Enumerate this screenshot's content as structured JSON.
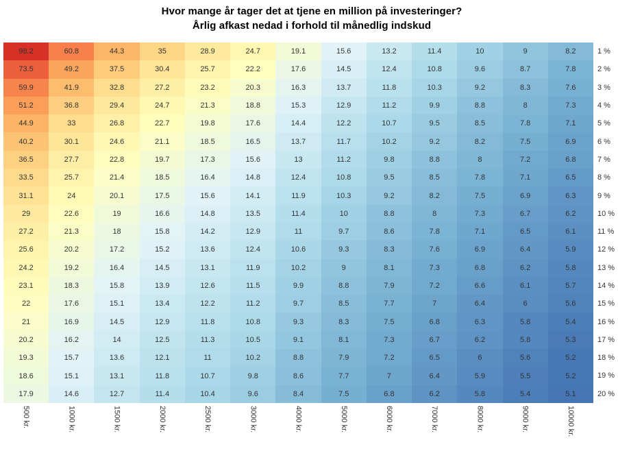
{
  "chart_data": {
    "type": "heatmap",
    "title": "Hvor mange år tager det at tjene en million på investeringer?",
    "subtitle": "Årlig afkast nedad i forhold til månedlig indskud",
    "columns": [
      "500 kr.",
      "1000 kr.",
      "1500 kr.",
      "2000 kr.",
      "2500 kr.",
      "3000 kr.",
      "4000 kr.",
      "5000 kr.",
      "6000 kr.",
      "7000 kr.",
      "8000 kr.",
      "9000 kr.",
      "10000 kr."
    ],
    "rows": [
      "1 %",
      "2 %",
      "3 %",
      "4 %",
      "5 %",
      "6 %",
      "7 %",
      "8 %",
      "9 %",
      "10 %",
      "11 %",
      "12 %",
      "13 %",
      "14 %",
      "15 %",
      "16 %",
      "17 %",
      "18 %",
      "19 %",
      "20 %"
    ],
    "values": [
      [
        98.2,
        60.8,
        44.3,
        35,
        28.9,
        24.7,
        19.1,
        15.6,
        13.2,
        11.4,
        10,
        9,
        8.2
      ],
      [
        73.5,
        49.2,
        37.5,
        30.4,
        25.7,
        22.2,
        17.6,
        14.5,
        12.4,
        10.8,
        9.6,
        8.7,
        7.8
      ],
      [
        59.9,
        41.9,
        32.8,
        27.2,
        23.2,
        20.3,
        16.3,
        13.7,
        11.8,
        10.3,
        9.2,
        8.3,
        7.6
      ],
      [
        51.2,
        36.8,
        29.4,
        24.7,
        21.3,
        18.8,
        15.3,
        12.9,
        11.2,
        9.9,
        8.8,
        8,
        7.3
      ],
      [
        44.9,
        33,
        26.8,
        22.7,
        19.8,
        17.6,
        14.4,
        12.2,
        10.7,
        9.5,
        8.5,
        7.8,
        7.1
      ],
      [
        40.2,
        30.1,
        24.6,
        21.1,
        18.5,
        16.5,
        13.7,
        11.7,
        10.2,
        9.2,
        8.2,
        7.5,
        6.9
      ],
      [
        36.5,
        27.7,
        22.8,
        19.7,
        17.3,
        15.6,
        13,
        11.2,
        9.8,
        8.8,
        8,
        7.2,
        6.8
      ],
      [
        33.5,
        25.7,
        21.4,
        18.5,
        16.4,
        14.8,
        12.4,
        10.8,
        9.5,
        8.5,
        7.8,
        7.1,
        6.5
      ],
      [
        31.1,
        24,
        20.1,
        17.5,
        15.6,
        14.1,
        11.9,
        10.3,
        9.2,
        8.2,
        7.5,
        6.9,
        6.3
      ],
      [
        29,
        22.6,
        19,
        16.6,
        14.8,
        13.5,
        11.4,
        10,
        8.8,
        8,
        7.3,
        6.7,
        6.2
      ],
      [
        27.2,
        21.3,
        18,
        15.8,
        14.2,
        12.9,
        11,
        9.7,
        8.6,
        7.8,
        7.1,
        6.5,
        6.1
      ],
      [
        25.6,
        20.2,
        17.2,
        15.2,
        13.6,
        12.4,
        10.6,
        9.3,
        8.3,
        7.6,
        6.9,
        6.4,
        5.9
      ],
      [
        24.2,
        19.2,
        16.4,
        14.5,
        13.1,
        11.9,
        10.2,
        9,
        8.1,
        7.3,
        6.8,
        6.2,
        5.8
      ],
      [
        23.1,
        18.3,
        15.8,
        13.9,
        12.6,
        11.5,
        9.9,
        8.8,
        7.9,
        7.2,
        6.6,
        6.1,
        5.7
      ],
      [
        22,
        17.6,
        15.1,
        13.4,
        12.2,
        11.2,
        9.7,
        8.5,
        7.7,
        7,
        6.4,
        6,
        5.6
      ],
      [
        21,
        16.9,
        14.5,
        12.9,
        11.8,
        10.8,
        9.3,
        8.3,
        7.5,
        6.8,
        6.3,
        5.8,
        5.4
      ],
      [
        20.2,
        16.2,
        14,
        12.5,
        11.3,
        10.5,
        9.1,
        8.1,
        7.3,
        6.7,
        6.2,
        5.8,
        5.3
      ],
      [
        19.3,
        15.7,
        13.6,
        12.1,
        11,
        10.2,
        8.8,
        7.9,
        7.2,
        6.5,
        6,
        5.6,
        5.2
      ],
      [
        18.6,
        15.1,
        13.1,
        11.8,
        10.7,
        9.8,
        8.6,
        7.7,
        7,
        6.4,
        5.9,
        5.5,
        5.2
      ],
      [
        17.9,
        14.6,
        12.7,
        11.4,
        10.4,
        9.6,
        8.4,
        7.5,
        6.8,
        6.2,
        5.8,
        5.4,
        5.1
      ]
    ],
    "value_min": 5.1,
    "value_max": 98.2,
    "color_scale": [
      "#d73027",
      "#f46d43",
      "#fdae61",
      "#fee090",
      "#ffffbf",
      "#e0f3f8",
      "#abd9e9",
      "#74add1",
      "#4575b4"
    ],
    "color_mapping": "log",
    "cell_text_color": "#333333",
    "legend_position": "none",
    "grid": "off"
  }
}
